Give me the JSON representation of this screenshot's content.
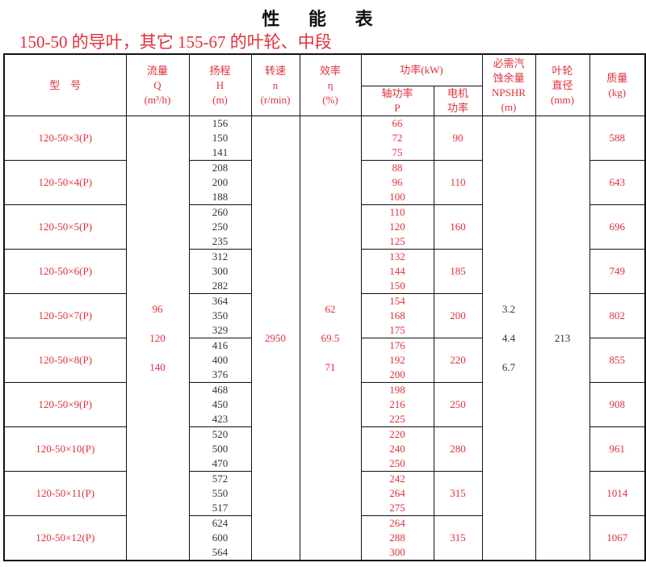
{
  "title": "性 能 表",
  "subtitle": "150-50 的导叶，其它 155-67 的叶轮、中段",
  "colors": {
    "accent_red": "#e0303c",
    "text_dark": "#333333"
  },
  "headers": {
    "model": "型　号",
    "flow": [
      "流量",
      "Q",
      "(m³/h)"
    ],
    "head": [
      "扬程",
      "H",
      "(m)"
    ],
    "speed": [
      "转速",
      "n",
      "(r/min)"
    ],
    "efficiency": [
      "效率",
      "η",
      "(%)"
    ],
    "power": "功率(kW)",
    "shaft_power": [
      "轴功率",
      "P"
    ],
    "motor_power": [
      "电机",
      "功率"
    ],
    "npshr": [
      "必需汽",
      "蚀余量",
      "NPSHR",
      "(m)"
    ],
    "impeller": [
      "叶轮",
      "直径",
      "(mm)"
    ],
    "mass": [
      "质量",
      "(kg)"
    ]
  },
  "shared": {
    "flow": [
      "96",
      "120",
      "140"
    ],
    "speed": "2950",
    "efficiency": [
      "62",
      "69.5",
      "71"
    ],
    "npshr": [
      "3.2",
      "4.4",
      "6.7"
    ],
    "impeller": "213"
  },
  "rows": [
    {
      "model": "120-50×3(P)",
      "head": [
        "156",
        "150",
        "141"
      ],
      "shaft": [
        "66",
        "72",
        "75"
      ],
      "motor": "90",
      "mass": "588"
    },
    {
      "model": "120-50×4(P)",
      "head": [
        "208",
        "200",
        "188"
      ],
      "shaft": [
        "88",
        "96",
        "100"
      ],
      "motor": "110",
      "mass": "643"
    },
    {
      "model": "120-50×5(P)",
      "head": [
        "260",
        "250",
        "235"
      ],
      "shaft": [
        "110",
        "120",
        "125"
      ],
      "motor": "160",
      "mass": "696"
    },
    {
      "model": "120-50×6(P)",
      "head": [
        "312",
        "300",
        "282"
      ],
      "shaft": [
        "132",
        "144",
        "150"
      ],
      "motor": "185",
      "mass": "749"
    },
    {
      "model": "120-50×7(P)",
      "head": [
        "364",
        "350",
        "329"
      ],
      "shaft": [
        "154",
        "168",
        "175"
      ],
      "motor": "200",
      "mass": "802"
    },
    {
      "model": "120-50×8(P)",
      "head": [
        "416",
        "400",
        "376"
      ],
      "shaft": [
        "176",
        "192",
        "200"
      ],
      "motor": "220",
      "mass": "855"
    },
    {
      "model": "120-50×9(P)",
      "head": [
        "468",
        "450",
        "423"
      ],
      "shaft": [
        "198",
        "216",
        "225"
      ],
      "motor": "250",
      "mass": "908"
    },
    {
      "model": "120-50×10(P)",
      "head": [
        "520",
        "500",
        "470"
      ],
      "shaft": [
        "220",
        "240",
        "250"
      ],
      "motor": "280",
      "mass": "961"
    },
    {
      "model": "120-50×11(P)",
      "head": [
        "572",
        "550",
        "517"
      ],
      "shaft": [
        "242",
        "264",
        "275"
      ],
      "motor": "315",
      "mass": "1014"
    },
    {
      "model": "120-50×12(P)",
      "head": [
        "624",
        "600",
        "564"
      ],
      "shaft": [
        "264",
        "288",
        "300"
      ],
      "motor": "315",
      "mass": "1067"
    }
  ]
}
